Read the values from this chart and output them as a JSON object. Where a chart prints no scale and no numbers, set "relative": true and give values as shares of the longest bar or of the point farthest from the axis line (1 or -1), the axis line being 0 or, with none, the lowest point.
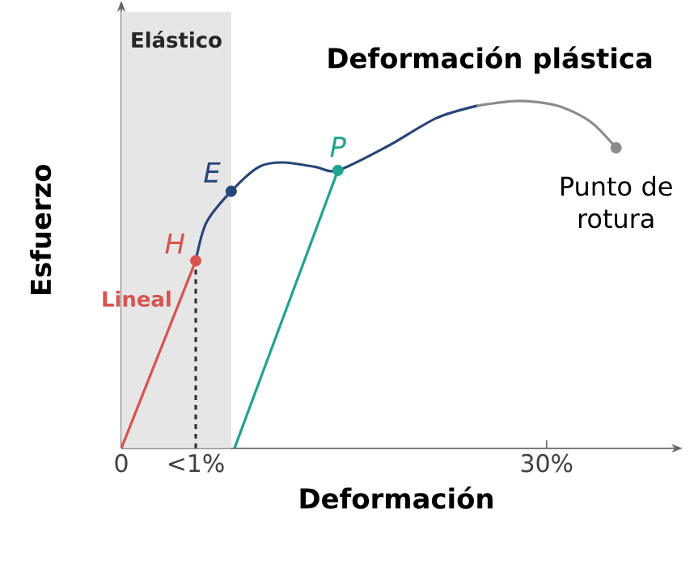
{
  "chart_data": {
    "type": "line",
    "relative": true,
    "xlabel": "Deformación",
    "ylabel": "Esfuerzo",
    "xlim": [
      0,
      38.8
    ],
    "xticks": [
      0,
      {
        "value": 5.25,
        "label": "<1%"
      },
      {
        "value": 30,
        "label": "30%"
      }
    ],
    "tick_labels": "x",
    "grid": false,
    "bands": [
      {
        "axis": "x",
        "from": 0,
        "to": 7.75,
        "label": "Elástico",
        "color": "#e6e6e6"
      }
    ],
    "annotations": [
      "Deformación plástica"
    ],
    "series": [
      {
        "name": "Lineal",
        "color": "#d9534f",
        "marker": "none",
        "line_style": "solid",
        "x": [
          0,
          5.25
        ],
        "values": [
          0,
          0.54
        ]
      },
      {
        "color": "#333333",
        "marker": "none",
        "line_style": "dashed",
        "x": [
          5.25,
          5.25
        ],
        "values": [
          0,
          0.54
        ]
      },
      {
        "color": "#27457a",
        "marker": "none",
        "line_style": "solid",
        "x": [
          5.25,
          6.0,
          7.75,
          9.7,
          11.4,
          13.7,
          15.28,
          18.8,
          22.2,
          25.1
        ],
        "values": [
          0.54,
          0.65,
          0.74,
          0.81,
          0.823,
          0.81,
          0.8,
          0.87,
          0.95,
          0.986
        ]
      },
      {
        "color": "#1fa38f",
        "marker": "none",
        "line_style": "solid",
        "x": [
          15.28,
          7.98
        ],
        "values": [
          0.8,
          0
        ]
      },
      {
        "color": "#8c8c8c",
        "marker": "none",
        "line_style": "solid",
        "x": [
          25.1,
          28.1,
          30.8,
          33.1,
          34.9
        ],
        "values": [
          0.986,
          1.0,
          0.986,
          0.94,
          0.865
        ]
      },
      {
        "name": "H",
        "type": "scatter",
        "color": "#d9534f",
        "marker": "circle",
        "x": [
          5.25
        ],
        "values": [
          0.54
        ]
      },
      {
        "name": "E",
        "type": "scatter",
        "color": "#27457a",
        "marker": "circle",
        "x": [
          7.75
        ],
        "values": [
          0.74
        ]
      },
      {
        "name": "P",
        "type": "scatter",
        "color": "#1fa38f",
        "marker": "circle",
        "x": [
          15.28
        ],
        "values": [
          0.8
        ]
      },
      {
        "name": "Punto de rotura",
        "type": "scatter",
        "color": "#8c8c8c",
        "marker": "circle",
        "x": [
          34.9
        ],
        "values": [
          0.865
        ]
      }
    ]
  }
}
